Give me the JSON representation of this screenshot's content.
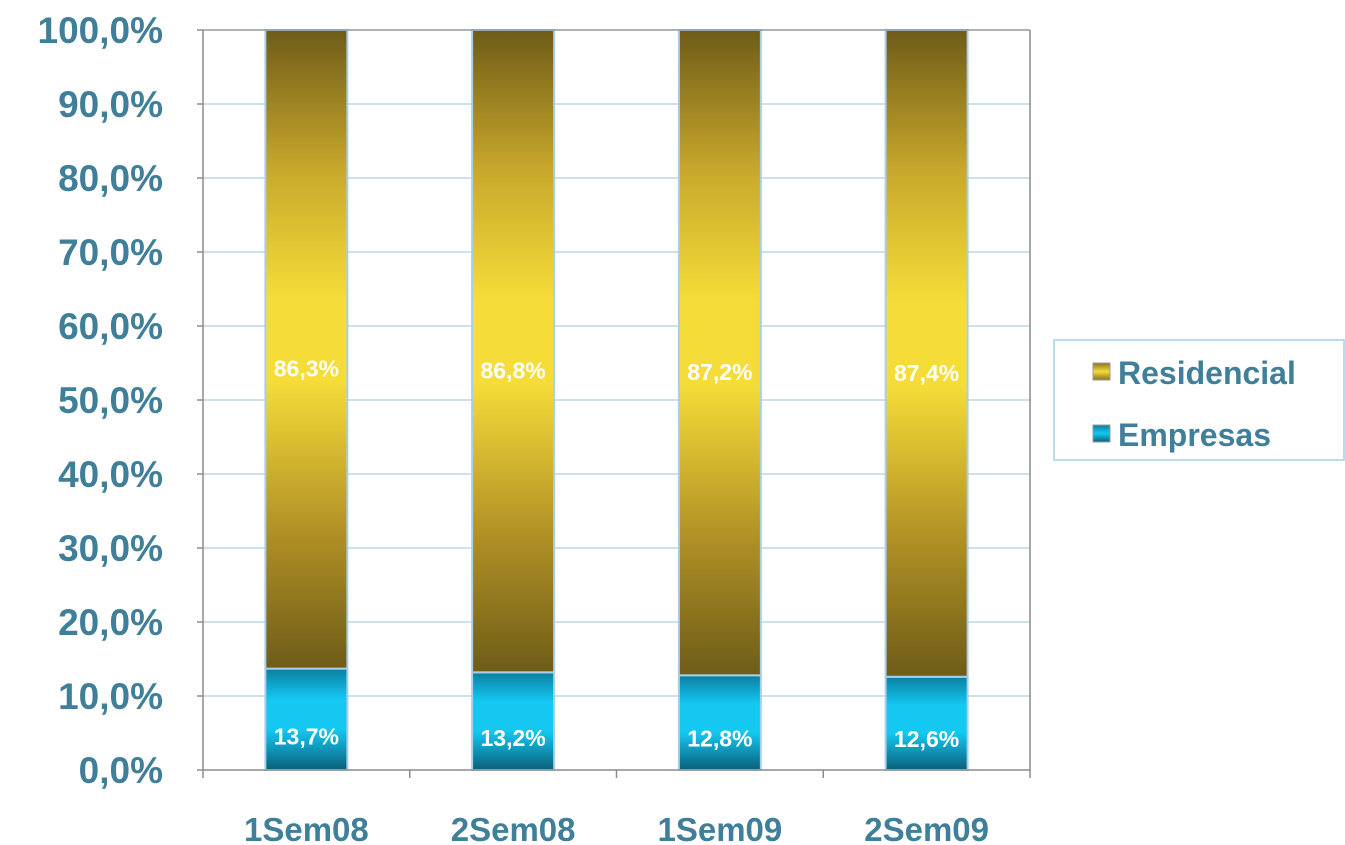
{
  "chart_data": {
    "type": "bar",
    "stacked": true,
    "categories": [
      "1Sem08",
      "2Sem08",
      "1Sem09",
      "2Sem09"
    ],
    "series": [
      {
        "name": "Empresas",
        "values": [
          13.7,
          13.2,
          12.8,
          12.6
        ],
        "labels": [
          "13,7%",
          "13,2%",
          "12,8%",
          "12,6%"
        ],
        "color": "#00bfef"
      },
      {
        "name": "Residencial",
        "values": [
          86.3,
          86.8,
          87.2,
          87.4
        ],
        "labels": [
          "86,3%",
          "86,8%",
          "87,2%",
          "87,4%"
        ],
        "color": "#f4d738"
      }
    ],
    "yticks": [
      "0,0%",
      "10,0%",
      "20,0%",
      "30,0%",
      "40,0%",
      "50,0%",
      "60,0%",
      "70,0%",
      "80,0%",
      "90,0%",
      "100,0%"
    ],
    "ylim": [
      0,
      100
    ],
    "grid": true,
    "legend_position": "right",
    "legend_order": [
      "Residencial",
      "Empresas"
    ],
    "colors": {
      "gridline": "#a9d0e3",
      "axis": "#8c8c8c",
      "text": "#3f7f99",
      "bar_border": "#a9cfe8"
    }
  }
}
